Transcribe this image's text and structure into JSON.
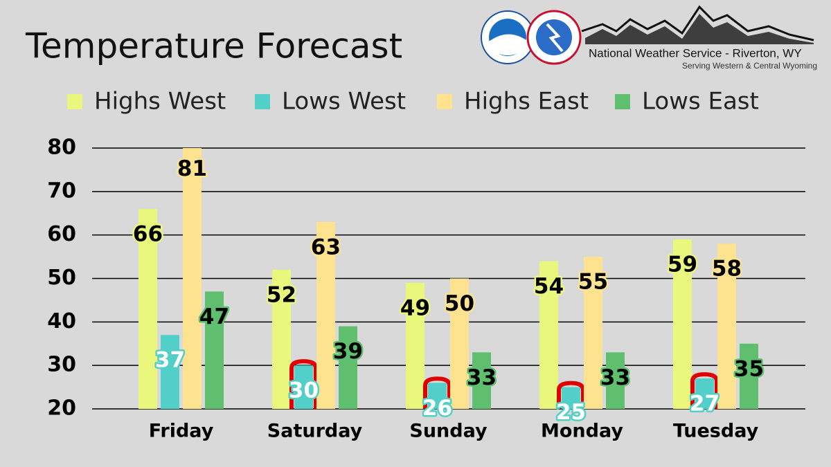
{
  "chart_data": {
    "type": "bar",
    "title": "Temperature Forecast",
    "categories": [
      "Friday",
      "Saturday",
      "Sunday",
      "Monday",
      "Tuesday"
    ],
    "series": [
      {
        "name": "Highs West",
        "color": "#e9f77c",
        "label_color": "#000000",
        "values": [
          66,
          52,
          49,
          54,
          59
        ]
      },
      {
        "name": "Lows West",
        "color": "#52cfc8",
        "label_color": "#ffffff",
        "values": [
          37,
          30,
          26,
          25,
          27
        ],
        "outlined": [
          false,
          true,
          true,
          true,
          true
        ]
      },
      {
        "name": "Highs East",
        "color": "#fde28f",
        "label_color": "#000000",
        "values": [
          81,
          63,
          50,
          55,
          58
        ]
      },
      {
        "name": "Lows East",
        "color": "#5fbf6f",
        "label_color": "#000000",
        "values": [
          47,
          39,
          33,
          33,
          35
        ]
      }
    ],
    "outline_color": "#e00000",
    "ylim": [
      20,
      80
    ],
    "yticks": [
      20,
      30,
      40,
      50,
      60,
      70,
      80
    ],
    "grid": true,
    "legend": "top"
  },
  "branding": {
    "agency": "National Weather Service - Riverton, WY",
    "tagline": "Serving Western & Central Wyoming"
  }
}
